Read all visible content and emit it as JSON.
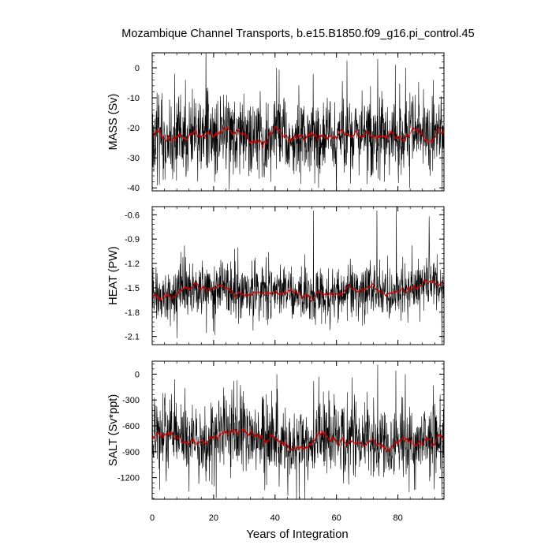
{
  "chart_data": {
    "type": "line",
    "title": "Mozambique Channel Transports, b.e15.B1850.f09_g16.pi_control.45",
    "xlabel": "Years of Integration",
    "xlim": [
      0,
      95
    ],
    "xticks": [
      0,
      20,
      40,
      60,
      80
    ],
    "x_minor_step": 4,
    "samples_per_year": 12,
    "colors": {
      "raw": "#000000",
      "smoothed": "#cc0000"
    },
    "panels": [
      {
        "name": "mass",
        "ylabel": "MASS (Sv)",
        "ylim": [
          -41,
          5
        ],
        "yticks": [
          0,
          -10,
          -20,
          -30,
          -40
        ],
        "ytick_labels": [
          "0",
          "-10",
          "-20",
          "-30",
          "-40"
        ],
        "y_minor_step": 2,
        "mean": -22,
        "raw_spread": 6.5,
        "smooth_spread": 1.9,
        "seed": 11,
        "peaks": [
          [
            7.3,
            -2
          ],
          [
            10.8,
            -4
          ],
          [
            40.5,
            0
          ],
          [
            52.4,
            -2
          ],
          [
            73.4,
            3
          ],
          [
            79.2,
            1
          ],
          [
            82.5,
            0
          ],
          [
            91.5,
            -4
          ],
          [
            2.3,
            -39
          ],
          [
            20.3,
            -38
          ],
          [
            83.8,
            -40
          ],
          [
            94.4,
            -41
          ]
        ]
      },
      {
        "name": "heat",
        "ylabel": "HEAT (PW)",
        "ylim": [
          -2.2,
          -0.5
        ],
        "yticks": [
          -0.6,
          -0.9,
          -1.2,
          -1.5,
          -1.8,
          -2.1
        ],
        "ytick_labels": [
          "-0.6",
          "-0.9",
          "-1.2",
          "-1.5",
          "-1.8",
          "-2.1"
        ],
        "y_minor_step": 0.06,
        "mean": -1.58,
        "raw_spread": 0.17,
        "smooth_spread": 0.05,
        "seed": 23,
        "peaks": [
          [
            10.5,
            -0.98
          ],
          [
            26.8,
            -1.02
          ],
          [
            37.9,
            -1.06
          ],
          [
            52.5,
            -0.55
          ],
          [
            73.2,
            -0.55
          ],
          [
            79.5,
            -0.5
          ],
          [
            84.6,
            -0.98
          ],
          [
            90.2,
            -0.62
          ],
          [
            8.1,
            -2.12
          ],
          [
            20.4,
            -2.08
          ],
          [
            94.3,
            -2.2
          ]
        ]
      },
      {
        "name": "salt",
        "ylabel": "SALT (Sv*ppt)",
        "ylim": [
          -1450,
          150
        ],
        "yticks": [
          0,
          -300,
          -600,
          -900,
          -1200
        ],
        "ytick_labels": [
          "0",
          "-300",
          "-600",
          "-900",
          "-1200"
        ],
        "y_minor_step": 60,
        "mean": -730,
        "raw_spread": 220,
        "smooth_spread": 60,
        "seed": 37,
        "peaks": [
          [
            7.3,
            -60
          ],
          [
            10.7,
            -160
          ],
          [
            40.6,
            0
          ],
          [
            52.6,
            -80
          ],
          [
            73.4,
            110
          ],
          [
            79.3,
            40
          ],
          [
            82.4,
            0
          ],
          [
            91.6,
            -130
          ],
          [
            2.4,
            -1340
          ],
          [
            20.2,
            -1300
          ],
          [
            83.7,
            -1370
          ],
          [
            94.3,
            -1420
          ]
        ]
      }
    ]
  }
}
